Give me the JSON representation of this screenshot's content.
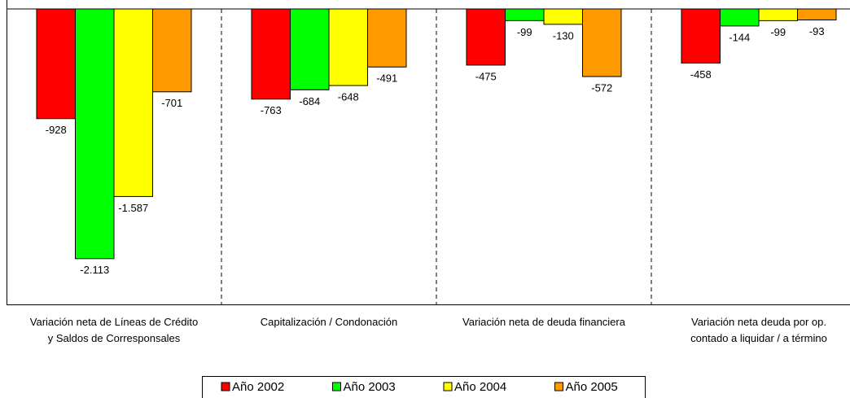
{
  "chart_data": {
    "type": "bar",
    "categories": [
      "Variación neta de Líneas de Crédito\ny Saldos de Corresponsales",
      "Capitalización / Condonación",
      "Variación neta de deuda financiera",
      "Variación neta deuda por op.\ncontado a liquidar / a término"
    ],
    "series": [
      {
        "name": "Año 2002",
        "color": "#ff0000",
        "values": [
          -928,
          -763,
          -475,
          -458
        ]
      },
      {
        "name": "Año 2003",
        "color": "#00ff00",
        "values": [
          -2113,
          -684,
          -99,
          -144
        ],
        "value_labels": [
          "-2.113",
          "-684",
          "-99",
          "-144"
        ]
      },
      {
        "name": "Año 2004",
        "color": "#ffff00",
        "values": [
          -1587,
          -648,
          -130,
          -99
        ],
        "value_labels": [
          "-1.587",
          "-648",
          "-130",
          "-99"
        ]
      },
      {
        "name": "Año 2005",
        "color": "#ff9900",
        "values": [
          -701,
          -491,
          -572,
          -93
        ]
      }
    ],
    "ylim": [
      -2500,
      0
    ],
    "legend": "bottom"
  }
}
